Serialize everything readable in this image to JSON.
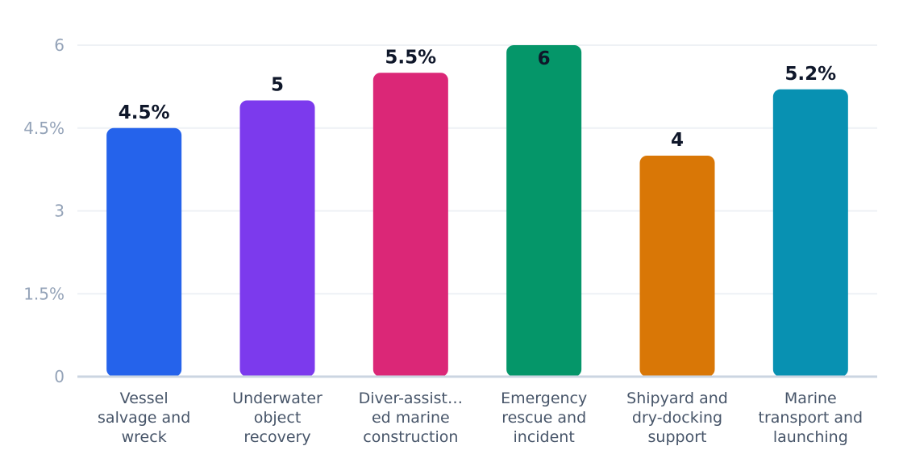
{
  "chart_data": {
    "type": "bar",
    "categories": [
      [
        "Vessel",
        "salvage and",
        "wreck"
      ],
      [
        "Underwater",
        "object",
        "recovery"
      ],
      [
        "Diver-assist…",
        "ed marine",
        "construction"
      ],
      [
        "Emergency",
        "rescue and",
        "incident"
      ],
      [
        "Shipyard and",
        "dry-docking",
        "support"
      ],
      [
        "Marine",
        "transport and",
        "launching"
      ]
    ],
    "values": [
      4.5,
      5,
      5.5,
      6,
      4,
      5.2
    ],
    "data_labels": [
      "4.5%",
      "5",
      "5.5%",
      "6",
      "4",
      "5.2%"
    ],
    "colors": [
      "#2563eb",
      "#7c3aed",
      "#db2777",
      "#059669",
      "#d97706",
      "#0891b2"
    ],
    "ylim": [
      0,
      6
    ],
    "yticks": [
      0,
      1.5,
      3,
      4.5,
      6
    ],
    "ytick_labels": [
      "0",
      "1.5%",
      "3",
      "4.5%",
      "6"
    ],
    "grid": true,
    "legend": "none"
  }
}
